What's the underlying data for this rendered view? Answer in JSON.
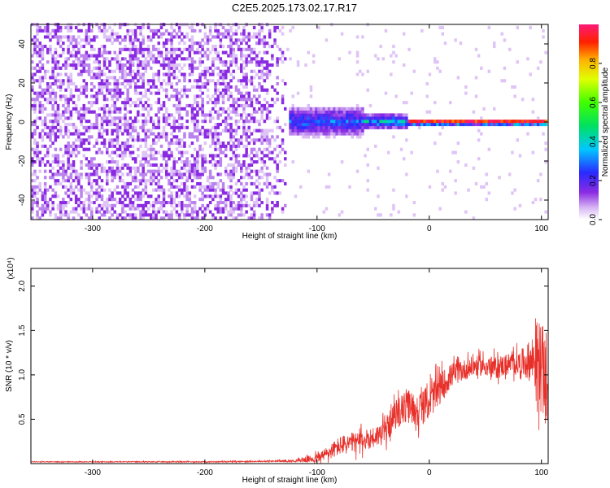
{
  "title": "C2E5.2025.173.02.17.R17",
  "colors": {
    "snr_line": "#e8302a",
    "spec_core": "#1a2cff",
    "spec_noise": "#7a22e0",
    "spec_faint": "#cfb4f2"
  },
  "chart_data": [
    {
      "type": "heatmap",
      "xlabel": "Height of straight line (km)",
      "ylabel": "Frequency (Hz)",
      "xlim": [
        -355,
        106
      ],
      "ylim": [
        -50,
        50
      ],
      "xticks": [
        -300,
        -200,
        -100,
        0,
        100
      ],
      "yticks": [
        -40,
        -20,
        0,
        20,
        40
      ],
      "colorbar": {
        "label": "Normalized spectral amplitude",
        "range": [
          0.0,
          1.0
        ],
        "ticks": [
          0.0,
          0.2,
          0.4,
          0.6,
          0.8
        ],
        "tick_labels": [
          "0.0",
          "0.2",
          "0.4",
          "0.6",
          "0.8"
        ],
        "colormap": "rainbow (white-violet-blue-cyan-green-yellow-red-magenta)"
      },
      "regions": [
        {
          "x_range": [
            -355,
            -125
          ],
          "freq_range": [
            -50,
            50
          ],
          "amplitude": 0.15,
          "pattern": "broadband noise"
        },
        {
          "x_range": [
            -125,
            -60
          ],
          "freq_range": [
            -8,
            8
          ],
          "amplitude": 0.3,
          "pattern": "narrowing band"
        },
        {
          "x_range": [
            -60,
            -20
          ],
          "freq_range": [
            -4,
            4
          ],
          "amplitude": 0.4,
          "pattern": "narrow band"
        },
        {
          "x_range": [
            -20,
            106
          ],
          "freq_range": [
            -1,
            1
          ],
          "amplitude": 0.95,
          "pattern": "strong line at 0 Hz"
        }
      ]
    },
    {
      "type": "line",
      "xlabel": "Height of straight line (km)",
      "ylabel": "SNR (10 * v/v)",
      "y_multiplier": "(x10⁴)",
      "xlim": [
        -355,
        106
      ],
      "ylim": [
        0,
        22000
      ],
      "xticks": [
        -300,
        -200,
        -100,
        0,
        100
      ],
      "yticks": [
        5000,
        10000,
        15000,
        20000
      ],
      "ytick_labels": [
        "0.5",
        "1.0",
        "1.5",
        "2.0"
      ],
      "series": [
        {
          "x": [
            -355,
            -300,
            -250,
            -200,
            -150,
            -120,
            -100,
            -90,
            -80,
            -70,
            -60,
            -50,
            -40,
            -30,
            -20,
            -10,
            0,
            10,
            20,
            30,
            40,
            50,
            60,
            70,
            80,
            90,
            95,
            100,
            104
          ],
          "y": [
            200,
            200,
            200,
            200,
            250,
            300,
            600,
            1200,
            2000,
            2300,
            2500,
            3000,
            3500,
            5500,
            6500,
            6000,
            7000,
            8500,
            10000,
            10500,
            11000,
            11000,
            10800,
            11200,
            11300,
            11500,
            12000,
            11000,
            9000
          ],
          "noise_amplitude": [
            50,
            50,
            60,
            60,
            80,
            150,
            600,
            900,
            1200,
            1300,
            1300,
            1300,
            1500,
            1800,
            2200,
            2000,
            2200,
            2000,
            1500,
            1300,
            1300,
            1200,
            1400,
            1400,
            1500,
            2500,
            4500,
            6000,
            5000
          ]
        }
      ]
    }
  ]
}
